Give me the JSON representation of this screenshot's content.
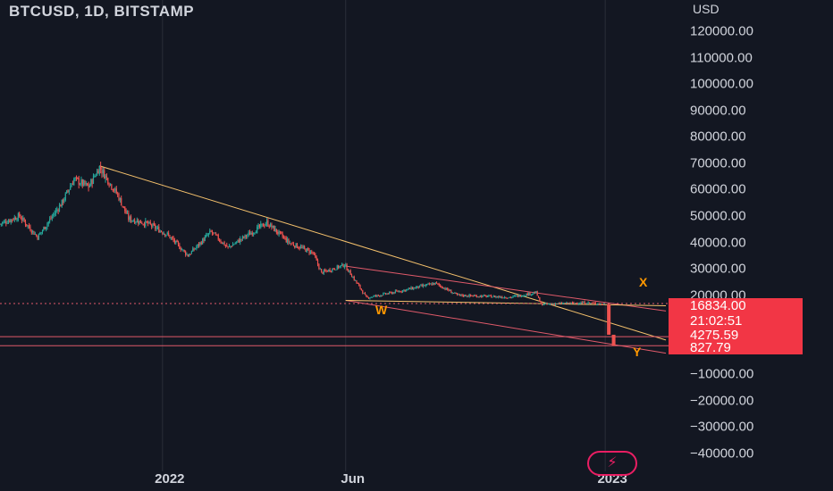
{
  "header": {
    "title": "BTCUSD, 1D, BITSTAMP",
    "currency": "USD"
  },
  "price_tags": {
    "last": "16834.00",
    "countdown": "21:02:51",
    "level_1": "4275.59",
    "level_2": "827.79"
  },
  "wave_labels": {
    "w": "W",
    "x": "X",
    "y": "Y"
  },
  "colors": {
    "background": "#131722",
    "up": "#26a69a",
    "down": "#ef5350",
    "trendline": "#f5c16c",
    "channel": "#e05a6a",
    "tag": "#f23645",
    "wave": "#ff9800"
  },
  "chart_data": {
    "type": "candlestick",
    "title": "BTCUSD, 1D, BITSTAMP",
    "ylabel": "USD",
    "ylim": [
      -40000,
      125000
    ],
    "y_ticks": [
      "120000.00",
      "110000.00",
      "100000.00",
      "90000.00",
      "80000.00",
      "70000.00",
      "60000.00",
      "50000.00",
      "40000.00",
      "30000.00",
      "20000.00",
      "10000.00",
      "0.00",
      "−10000.00",
      "−20000.00",
      "−30000.00",
      "−40000.00"
    ],
    "y_tick_values": [
      120000,
      110000,
      100000,
      90000,
      80000,
      70000,
      60000,
      50000,
      40000,
      30000,
      20000,
      10000,
      0,
      -10000,
      -20000,
      -30000,
      -40000
    ],
    "x_ticks": [
      "2022",
      "Jun",
      "2023"
    ],
    "x_tick_dates": [
      "2022-01-01",
      "2022-06-01",
      "2023-01-01"
    ],
    "x_range": [
      "2021-08-20",
      "2023-02-20"
    ],
    "price_path": [
      {
        "date": "2021-08-20",
        "close": 47000
      },
      {
        "date": "2021-09-05",
        "close": 50000
      },
      {
        "date": "2021-09-20",
        "close": 42000
      },
      {
        "date": "2021-10-10",
        "close": 55000
      },
      {
        "date": "2021-10-20",
        "close": 64000
      },
      {
        "date": "2021-11-01",
        "close": 61000
      },
      {
        "date": "2021-11-10",
        "close": 68500
      },
      {
        "date": "2021-11-25",
        "close": 58000
      },
      {
        "date": "2021-12-04",
        "close": 49000
      },
      {
        "date": "2021-12-20",
        "close": 47000
      },
      {
        "date": "2022-01-05",
        "close": 43000
      },
      {
        "date": "2022-01-22",
        "close": 35000
      },
      {
        "date": "2022-02-10",
        "close": 44000
      },
      {
        "date": "2022-02-24",
        "close": 38000
      },
      {
        "date": "2022-03-28",
        "close": 47500
      },
      {
        "date": "2022-04-15",
        "close": 40000
      },
      {
        "date": "2022-05-05",
        "close": 36000
      },
      {
        "date": "2022-05-12",
        "close": 28500
      },
      {
        "date": "2022-05-31",
        "close": 31500
      },
      {
        "date": "2022-06-14",
        "close": 22000
      },
      {
        "date": "2022-06-18",
        "close": 19000
      },
      {
        "date": "2022-07-10",
        "close": 21000
      },
      {
        "date": "2022-08-14",
        "close": 24500
      },
      {
        "date": "2022-09-01",
        "close": 20000
      },
      {
        "date": "2022-10-15",
        "close": 19200
      },
      {
        "date": "2022-11-05",
        "close": 21000
      },
      {
        "date": "2022-11-09",
        "close": 16500
      },
      {
        "date": "2022-12-15",
        "close": 17200
      },
      {
        "date": "2022-12-31",
        "close": 16600
      }
    ],
    "projection": [
      {
        "date": "2022-12-31",
        "close": 16600
      },
      {
        "date": "2023-01-01",
        "close": 5000
      },
      {
        "date": "2023-01-05",
        "close": 827.79
      }
    ],
    "trendlines": [
      {
        "name": "main_down",
        "from": {
          "date": "2021-11-10",
          "price": 69000
        },
        "to": {
          "date": "2023-02-20",
          "price": 3000
        }
      },
      {
        "name": "channel_top",
        "from": {
          "date": "2022-06-01",
          "price": 31000
        },
        "to": {
          "date": "2023-02-20",
          "price": 14000
        }
      },
      {
        "name": "channel_bottom",
        "from": {
          "date": "2022-06-01",
          "price": 18000
        },
        "to": {
          "date": "2023-02-20",
          "price": -2000
        }
      },
      {
        "name": "support",
        "from": {
          "date": "2022-06-01",
          "price": 18000
        },
        "to": {
          "date": "2023-02-20",
          "price": 16000
        }
      }
    ],
    "levels": [
      4275.59,
      827.79
    ],
    "last_price": 16834.0,
    "grid": "vertical"
  }
}
